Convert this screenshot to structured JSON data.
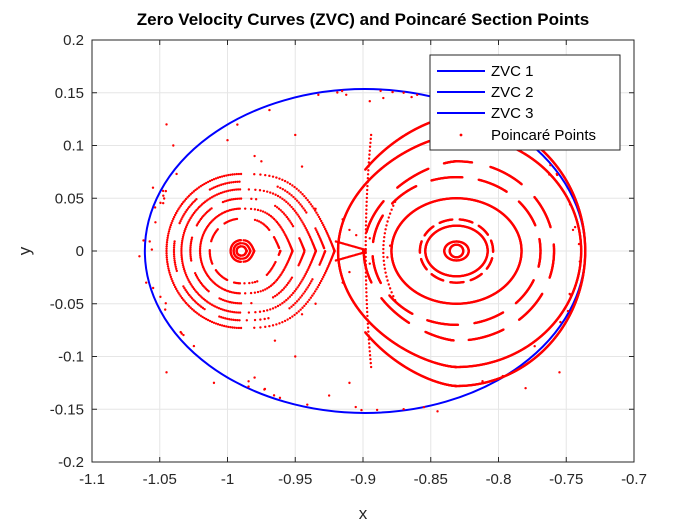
{
  "chart_data": {
    "type": "scatter",
    "title": "Zero Velocity Curves (ZVC) and Poincaré Section Points",
    "xlabel": "x",
    "ylabel": "y",
    "xlim": [
      -1.1,
      -0.7
    ],
    "ylim": [
      -0.2,
      0.2
    ],
    "x_ticks": [
      "-1.1",
      "-1.05",
      "-1",
      "-0.95",
      "-0.9",
      "-0.85",
      "-0.8",
      "-0.75",
      "-0.7"
    ],
    "y_ticks": [
      "-0.2",
      "-0.15",
      "-0.1",
      "-0.05",
      "0",
      "0.05",
      "0.1",
      "0.15",
      "0.2"
    ],
    "grid": true,
    "legend_position": "top-right",
    "colors": {
      "zvc": "#0000ff",
      "poincare": "#ff0000"
    },
    "series": [
      {
        "name": "ZVC 1",
        "kind": "line",
        "color": "#0000ff",
        "ellipse": {
          "center_x": -0.8985,
          "center_y": 0.0,
          "semi_axis_x": 0.1625,
          "semi_axis_y": 0.1535
        }
      },
      {
        "name": "ZVC 2",
        "kind": "line",
        "color": "#0000ff"
      },
      {
        "name": "ZVC 3",
        "kind": "line",
        "color": "#0000ff"
      },
      {
        "name": "Poincaré Points",
        "kind": "points",
        "color": "#ff0000",
        "left_family": {
          "center_x": -0.99,
          "tip_x": -0.921,
          "left_x": -1.045,
          "outer_half_height": 0.073,
          "level_fractions": [
            0.06,
            0.1,
            0.14,
            0.42,
            0.55,
            0.68,
            0.8,
            0.9,
            1.0
          ]
        },
        "right_family": {
          "center_x": -0.831,
          "center_y": 0.0,
          "radii": [
            {
              "rx": 0.005,
              "ry": 0.006
            },
            {
              "rx": 0.009,
              "ry": 0.009
            },
            {
              "rx": 0.023,
              "ry": 0.024
            },
            {
              "rx": 0.027,
              "ry": 0.03
            },
            {
              "rx": 0.048,
              "ry": 0.05
            },
            {
              "rx": 0.062,
              "ry": 0.07
            },
            {
              "rx": 0.072,
              "ry": 0.085
            },
            {
              "rx": 0.092,
              "ry": 0.11
            },
            {
              "rx": 0.095,
              "ry": 0.128
            }
          ]
        },
        "scattered": [
          [
            -0.935,
            0.04
          ],
          [
            -0.945,
            0.08
          ],
          [
            -0.98,
            0.09
          ],
          [
            -0.95,
            0.11
          ],
          [
            -1.0,
            0.105
          ],
          [
            -1.04,
            0.1
          ],
          [
            -1.045,
            0.12
          ],
          [
            -0.915,
            0.03
          ],
          [
            -0.91,
            0.02
          ],
          [
            -0.905,
            0.015
          ],
          [
            -0.915,
            -0.03
          ],
          [
            -0.91,
            -0.02
          ],
          [
            -0.935,
            -0.05
          ],
          [
            -0.945,
            -0.06
          ],
          [
            -0.95,
            -0.1
          ],
          [
            -0.98,
            -0.12
          ],
          [
            -1.01,
            -0.125
          ],
          [
            -1.045,
            -0.115
          ],
          [
            -0.91,
            -0.125
          ],
          [
            -0.885,
            0.145
          ],
          [
            -0.87,
            0.15
          ],
          [
            -0.86,
            0.148
          ],
          [
            -0.855,
            -0.148
          ],
          [
            -0.87,
            -0.15
          ],
          [
            -0.84,
            0.152
          ],
          [
            -0.845,
            -0.152
          ],
          [
            -0.765,
            0.13
          ],
          [
            -0.755,
            -0.115
          ],
          [
            -0.745,
            0.02
          ],
          [
            -0.74,
            -0.01
          ],
          [
            -0.76,
            0.07
          ],
          [
            -0.78,
            -0.13
          ],
          [
            -0.895,
            0.012
          ],
          [
            -0.895,
            -0.012
          ],
          [
            -0.9,
            0.0
          ],
          [
            -0.88,
            0.005
          ],
          [
            -0.882,
            -0.006
          ],
          [
            -1.062,
            0.01
          ],
          [
            -1.06,
            -0.03
          ],
          [
            -1.055,
            0.06
          ],
          [
            -0.975,
            0.085
          ],
          [
            -0.965,
            -0.085
          ],
          [
            -0.895,
            0.142
          ],
          [
            -0.925,
            -0.137
          ],
          [
            -1.065,
            -0.005
          ]
        ]
      }
    ]
  }
}
